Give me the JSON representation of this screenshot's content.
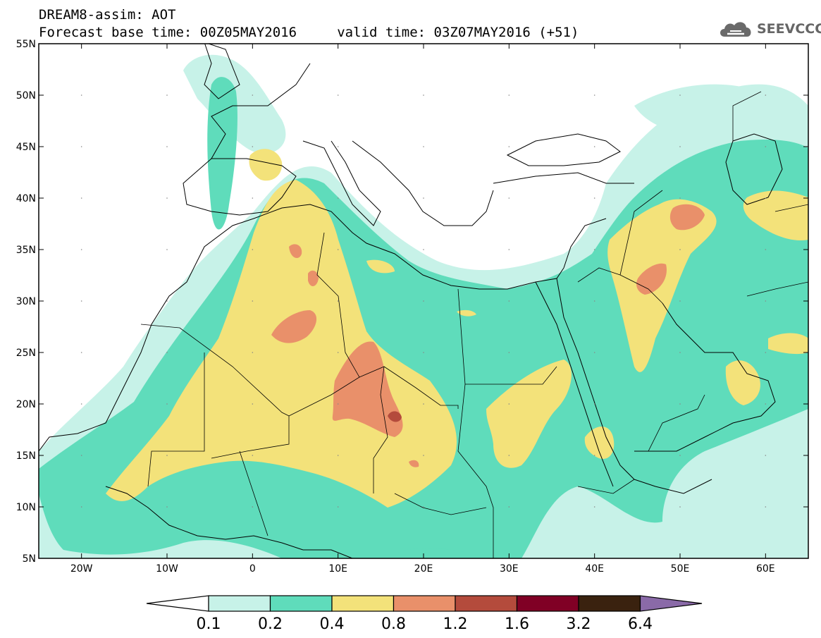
{
  "header": {
    "line1": "DREAM8-assim: AOT",
    "line2": "Forecast base time: 00Z05MAY2016     valid time: 03Z07MAY2016 (+51)"
  },
  "logo": {
    "text": "SEEVCCC",
    "icon": "cloud-logo-icon"
  },
  "axes": {
    "lat_ticks": [
      {
        "label": "55N",
        "value": 55
      },
      {
        "label": "50N",
        "value": 50
      },
      {
        "label": "45N",
        "value": 45
      },
      {
        "label": "40N",
        "value": 40
      },
      {
        "label": "35N",
        "value": 35
      },
      {
        "label": "30N",
        "value": 30
      },
      {
        "label": "25N",
        "value": 25
      },
      {
        "label": "20N",
        "value": 20
      },
      {
        "label": "15N",
        "value": 15
      },
      {
        "label": "10N",
        "value": 10
      },
      {
        "label": "5N",
        "value": 5
      }
    ],
    "lon_ticks": [
      {
        "label": "20W",
        "value": -20
      },
      {
        "label": "10W",
        "value": -10
      },
      {
        "label": "0",
        "value": 0
      },
      {
        "label": "10E",
        "value": 10
      },
      {
        "label": "20E",
        "value": 20
      },
      {
        "label": "30E",
        "value": 30
      },
      {
        "label": "40E",
        "value": 40
      },
      {
        "label": "50E",
        "value": 50
      },
      {
        "label": "60E",
        "value": 60
      }
    ],
    "lon_range": [
      -25,
      65
    ],
    "lat_range": [
      5,
      55
    ]
  },
  "colorbar": {
    "labels": [
      "0.1",
      "0.2",
      "0.4",
      "0.8",
      "1.2",
      "1.6",
      "3.2",
      "6.4"
    ],
    "colors": [
      "#c7f2e8",
      "#5fdcbb",
      "#f3e27a",
      "#e9906a",
      "#b44b3c",
      "#800025",
      "#3a220f"
    ],
    "under_color": "#ffffff",
    "over_color": "#8a6aa8"
  },
  "palette": {
    "c1": "#c7f2e8",
    "c2": "#5fdcbb",
    "c3": "#f3e27a",
    "c4": "#e9906a",
    "c5": "#b44b3c",
    "c6": "#800025"
  }
}
